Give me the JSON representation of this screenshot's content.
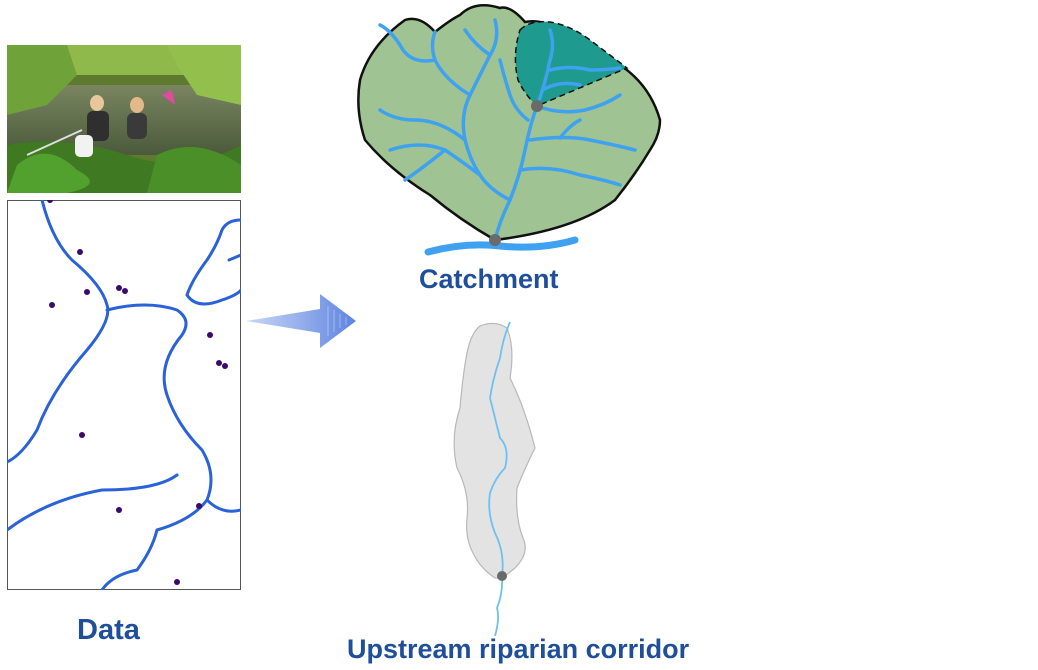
{
  "labels": {
    "data": "Data",
    "catchment": "Catchment",
    "corridor": "Upstream riparian corridor"
  },
  "colors": {
    "label": "#1f4e9a",
    "stream": "#3fa2f0",
    "catchment_fill": "#9fc392",
    "subcatchment_fill": "#1e9a8e",
    "corridor_fill": "#e3e3e3",
    "map_lines": "#2a62d8",
    "map_points": "#3b0a6e",
    "arrow": "#7f9fe8"
  },
  "icons": {
    "photo": "field-sampling-photo",
    "map": "stream-network-map",
    "arrow": "right-arrow"
  }
}
